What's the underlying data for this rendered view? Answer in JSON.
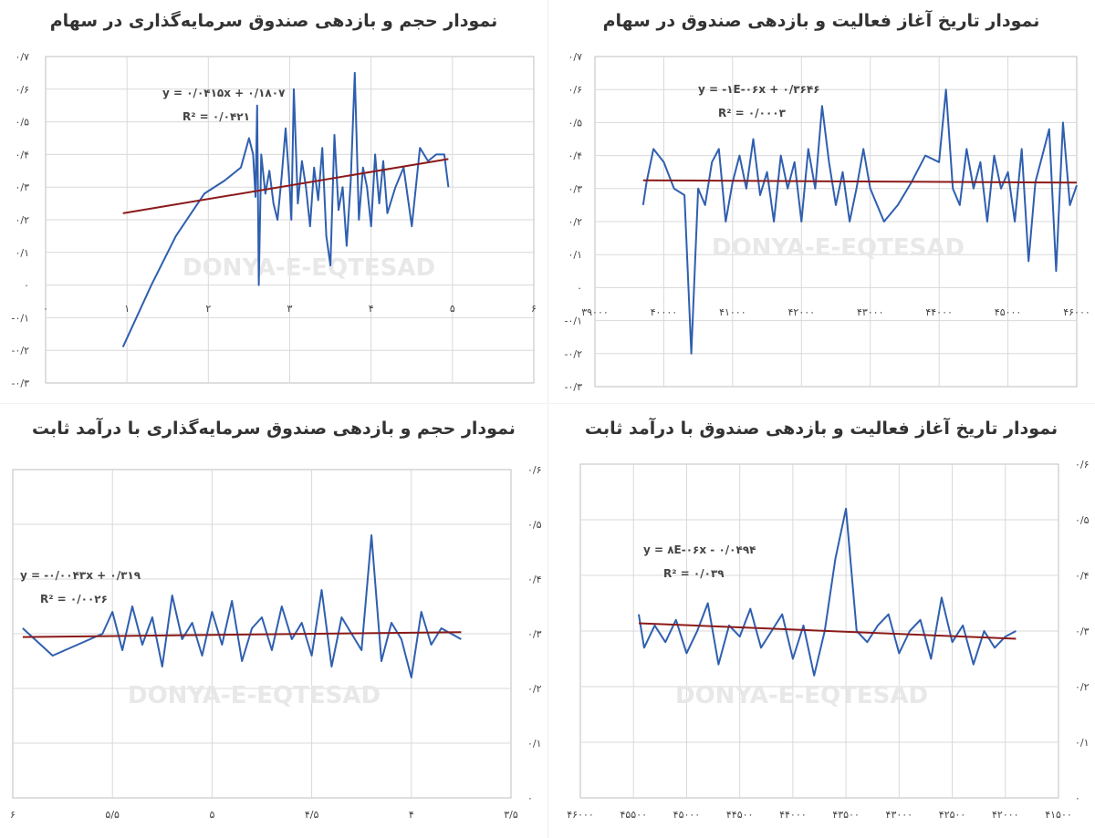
{
  "colors": {
    "series": "#2f5faf",
    "trend": "#8b1a1a",
    "grid": "#d9d9d9",
    "frame": "#bfbfbf",
    "watermark": "#e6e6e6"
  },
  "watermark": "DONYA-E-EQTESAD",
  "chart_data": [
    {
      "id": "tl",
      "type": "line",
      "title": "نمودار حجم و بازدهی صندوق سرمایه‌گذاری در سهام",
      "equation": "y = ۰/۰۴۱۵x + ۰/۱۸۰۷",
      "r2": "R² = ۰/۰۴۲۱",
      "xlim": [
        0,
        6
      ],
      "ylim": [
        -0.3,
        0.7
      ],
      "x_ticks": [
        "۰",
        "۱",
        "۲",
        "۳",
        "۴",
        "۵",
        "۶"
      ],
      "y_ticks": [
        "۰/۷",
        "۰/۶",
        "۰/۵",
        "۰/۴",
        "۰/۳",
        "۰/۲",
        "۰/۱",
        "۰",
        "-۰/۱",
        "-۰/۲",
        "-۰/۳"
      ],
      "series": [
        {
          "x": [
            0.95,
            1.3,
            1.6,
            1.95,
            2.2,
            2.4,
            2.5,
            2.55,
            2.58,
            2.6,
            2.62,
            2.65,
            2.7,
            2.75,
            2.8,
            2.85,
            2.9,
            2.95,
            3.0,
            3.02,
            3.05,
            3.1,
            3.15,
            3.2,
            3.25,
            3.3,
            3.35,
            3.4,
            3.45,
            3.5,
            3.55,
            3.6,
            3.65,
            3.7,
            3.75,
            3.8,
            3.85,
            3.9,
            3.95,
            4.0,
            4.05,
            4.1,
            4.15,
            4.2,
            4.3,
            4.4,
            4.5,
            4.6,
            4.7,
            4.8,
            4.9,
            4.95
          ],
          "y": [
            -0.19,
            0.0,
            0.15,
            0.28,
            0.32,
            0.36,
            0.45,
            0.4,
            0.27,
            0.55,
            0.0,
            0.4,
            0.28,
            0.35,
            0.25,
            0.2,
            0.33,
            0.48,
            0.3,
            0.2,
            0.6,
            0.25,
            0.38,
            0.3,
            0.18,
            0.36,
            0.26,
            0.42,
            0.15,
            0.06,
            0.46,
            0.23,
            0.3,
            0.12,
            0.32,
            0.65,
            0.2,
            0.36,
            0.3,
            0.18,
            0.4,
            0.25,
            0.38,
            0.22,
            0.3,
            0.36,
            0.18,
            0.42,
            0.38,
            0.4,
            0.4,
            0.3
          ]
        }
      ],
      "trend": {
        "x": [
          0.95,
          4.95
        ],
        "y": [
          0.22,
          0.386
        ]
      }
    },
    {
      "id": "tr",
      "type": "line",
      "title": "نمودار تاریخ آغاز فعالیت و بازدهی صندوق در سهام",
      "equation": "y = -۱E-۰۶x + ۰/۳۶۴۶",
      "r2": "R² = ۰/۰۰۰۳",
      "xlim": [
        39000,
        46000
      ],
      "ylim": [
        -0.3,
        0.7
      ],
      "x_ticks": [
        "۳۹۰۰۰",
        "۴۰۰۰۰",
        "۴۱۰۰۰",
        "۴۲۰۰۰",
        "۴۳۰۰۰",
        "۴۴۰۰۰",
        "۴۵۰۰۰",
        "۴۶۰۰۰"
      ],
      "y_ticks": [
        "۰/۷",
        "۰/۶",
        "۰/۵",
        "۰/۴",
        "۰/۳",
        "۰/۲",
        "۰/۱",
        "۰",
        "-۰/۱",
        "-۰/۲",
        "-۰/۳"
      ],
      "series": [
        {
          "x": [
            39700,
            39750,
            39850,
            40000,
            40150,
            40300,
            40400,
            40500,
            40600,
            40700,
            40800,
            40900,
            41000,
            41100,
            41200,
            41300,
            41400,
            41500,
            41600,
            41700,
            41800,
            41900,
            42000,
            42100,
            42200,
            42300,
            42400,
            42500,
            42600,
            42700,
            42800,
            42900,
            43000,
            43200,
            43400,
            43600,
            43800,
            44000,
            44100,
            44200,
            44300,
            44400,
            44500,
            44600,
            44700,
            44800,
            44900,
            45000,
            45100,
            45200,
            45300,
            45400,
            45500,
            45600,
            45700,
            45800,
            45900,
            46000
          ],
          "y": [
            0.25,
            0.32,
            0.42,
            0.38,
            0.3,
            0.28,
            -0.2,
            0.3,
            0.25,
            0.38,
            0.42,
            0.2,
            0.32,
            0.4,
            0.3,
            0.45,
            0.28,
            0.35,
            0.2,
            0.4,
            0.3,
            0.38,
            0.2,
            0.42,
            0.3,
            0.55,
            0.38,
            0.25,
            0.35,
            0.2,
            0.3,
            0.42,
            0.3,
            0.2,
            0.25,
            0.32,
            0.4,
            0.38,
            0.6,
            0.3,
            0.25,
            0.42,
            0.3,
            0.38,
            0.2,
            0.4,
            0.3,
            0.35,
            0.2,
            0.42,
            0.08,
            0.32,
            0.4,
            0.48,
            0.05,
            0.5,
            0.25,
            0.31
          ]
        }
      ],
      "trend": {
        "x": [
          39700,
          46000
        ],
        "y": [
          0.325,
          0.318
        ]
      }
    },
    {
      "id": "bl",
      "type": "line",
      "title": "نمودار حجم و بازدهی صندوق سرمایه‌گذاری با درآمد ثابت",
      "equation": "y = -۰/۰۰۴۳x + ۰/۳۱۹",
      "r2": "R² = ۰/۰۰۲۶",
      "xlim": [
        3.5,
        6
      ],
      "x_reversed": true,
      "ylim": [
        0,
        0.6
      ],
      "x_ticks": [
        "۶",
        "۵/۵",
        "۵",
        "۴/۵",
        "۴",
        "۳/۵"
      ],
      "y_ticks": [
        "۰/۶",
        "۰/۵",
        "۰/۴",
        "۰/۳",
        "۰/۲",
        "۰/۱",
        "۰"
      ],
      "series": [
        {
          "x": [
            5.95,
            5.8,
            5.55,
            5.5,
            5.45,
            5.4,
            5.35,
            5.3,
            5.25,
            5.2,
            5.15,
            5.1,
            5.05,
            5.0,
            4.95,
            4.9,
            4.85,
            4.8,
            4.75,
            4.7,
            4.65,
            4.6,
            4.55,
            4.5,
            4.45,
            4.4,
            4.35,
            4.3,
            4.25,
            4.2,
            4.15,
            4.1,
            4.05,
            4.0,
            3.95,
            3.9,
            3.85,
            3.8,
            3.75
          ],
          "y": [
            0.31,
            0.26,
            0.3,
            0.34,
            0.27,
            0.35,
            0.28,
            0.33,
            0.24,
            0.37,
            0.29,
            0.32,
            0.26,
            0.34,
            0.28,
            0.36,
            0.25,
            0.31,
            0.33,
            0.27,
            0.35,
            0.29,
            0.32,
            0.26,
            0.38,
            0.24,
            0.33,
            0.3,
            0.27,
            0.48,
            0.25,
            0.32,
            0.29,
            0.22,
            0.34,
            0.28,
            0.31,
            0.3,
            0.29
          ]
        }
      ],
      "trend": {
        "x": [
          5.95,
          3.75
        ],
        "y": [
          0.294,
          0.303
        ]
      }
    },
    {
      "id": "br",
      "type": "line",
      "title": "نمودار تاریخ آغاز فعالیت و بازدهی صندوق با درآمد ثابت",
      "equation": "y = ۸E-۰۶x - ۰/۰۴۹۴",
      "r2": "R² = ۰/۰۳۹",
      "xlim": [
        41500,
        46000
      ],
      "x_reversed": true,
      "ylim": [
        0,
        0.6
      ],
      "x_ticks": [
        "۴۶۰۰۰",
        "۴۵۵۰۰",
        "۴۵۰۰۰",
        "۴۴۵۰۰",
        "۴۴۰۰۰",
        "۴۳۵۰۰",
        "۴۳۰۰۰",
        "۴۲۵۰۰",
        "۴۲۰۰۰",
        "۴۱۵۰۰"
      ],
      "y_ticks": [
        "۰/۶",
        "۰/۵",
        "۰/۴",
        "۰/۳",
        "۰/۲",
        "۰/۱",
        "۰"
      ],
      "series": [
        {
          "x": [
            45450,
            45400,
            45300,
            45200,
            45100,
            45000,
            44900,
            44800,
            44700,
            44600,
            44500,
            44400,
            44300,
            44200,
            44100,
            44000,
            43900,
            43800,
            43700,
            43600,
            43500,
            43400,
            43300,
            43200,
            43100,
            43000,
            42900,
            42800,
            42700,
            42600,
            42500,
            42400,
            42300,
            42200,
            42100,
            42000,
            41900
          ],
          "y": [
            0.33,
            0.27,
            0.31,
            0.28,
            0.32,
            0.26,
            0.3,
            0.35,
            0.24,
            0.31,
            0.29,
            0.34,
            0.27,
            0.3,
            0.33,
            0.25,
            0.31,
            0.22,
            0.3,
            0.43,
            0.52,
            0.3,
            0.28,
            0.31,
            0.33,
            0.26,
            0.3,
            0.32,
            0.25,
            0.36,
            0.28,
            0.31,
            0.24,
            0.3,
            0.27,
            0.29,
            0.3
          ]
        }
      ],
      "trend": {
        "x": [
          45450,
          41900
        ],
        "y": [
          0.314,
          0.286
        ]
      }
    }
  ]
}
